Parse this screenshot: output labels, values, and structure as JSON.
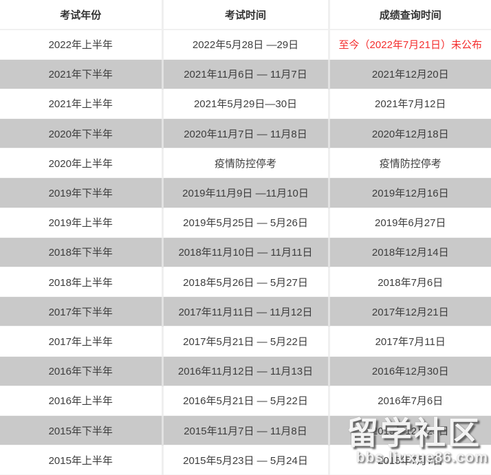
{
  "colors": {
    "alert_red": "#f42d2d",
    "row_stripe": "#c9c9c9",
    "header_text": "#333333",
    "body_text": "#3d3d3d"
  },
  "table": {
    "columns": [
      "考试年份",
      "考试时间",
      "成绩查询时间"
    ],
    "rows": [
      {
        "year": "2022年上半年",
        "exam": "2022年5月28日 —29日",
        "score": "至今（2022年7月21日）未公布",
        "score_red": true
      },
      {
        "year": "2021年下半年",
        "exam": "2021年11月6日 — 11月7日",
        "score": "2021年12月20日",
        "score_red": false
      },
      {
        "year": "2021年上半年",
        "exam": "2021年5月29日—30日",
        "score": "2021年7月12日",
        "score_red": false
      },
      {
        "year": "2020年下半年",
        "exam": "2020年11月7日 — 11月8日",
        "score": "2020年12月18日",
        "score_red": false
      },
      {
        "year": "2020年上半年",
        "exam": "疫情防控停考",
        "score": "疫情防控停考",
        "score_red": false
      },
      {
        "year": "2019年下半年",
        "exam": "2019年11月9日 —11月10日",
        "score": "2019年12月16日",
        "score_red": false
      },
      {
        "year": "2019年上半年",
        "exam": "2019年5月25日 — 5月26日",
        "score": "2019年6月27日",
        "score_red": false
      },
      {
        "year": "2018年下半年",
        "exam": "2018年11月10日 — 11月11日",
        "score": "2018年12月14日",
        "score_red": false
      },
      {
        "year": "2018年上半年",
        "exam": "2018年5月26日 — 5月27日",
        "score": "2018年7月6日",
        "score_red": false
      },
      {
        "year": "2017年下半年",
        "exam": "2017年11月11日 — 11月12日",
        "score": "2017年12月21日",
        "score_red": false
      },
      {
        "year": "2017年上半年",
        "exam": "2017年5月21日 — 5月22日",
        "score": "2017年7月11日",
        "score_red": false
      },
      {
        "year": "2016年下半年",
        "exam": "2016年11月12日 — 11月13日",
        "score": "2016年12月30日",
        "score_red": false
      },
      {
        "year": "2016年上半年",
        "exam": "2016年5月21日 — 5月22日",
        "score": "2016年7月6日",
        "score_red": false
      },
      {
        "year": "2015年下半年",
        "exam": "2015年11月7日 — 11月8日",
        "score": "2015年12月25日",
        "score_red": false
      },
      {
        "year": "2015年上半年",
        "exam": "2015年5月23日 — 5月24日",
        "score": "2015年7月7日",
        "score_red": false
      }
    ]
  },
  "watermark": {
    "title": "留学社区",
    "url": "bbs.liuxue86.com"
  }
}
